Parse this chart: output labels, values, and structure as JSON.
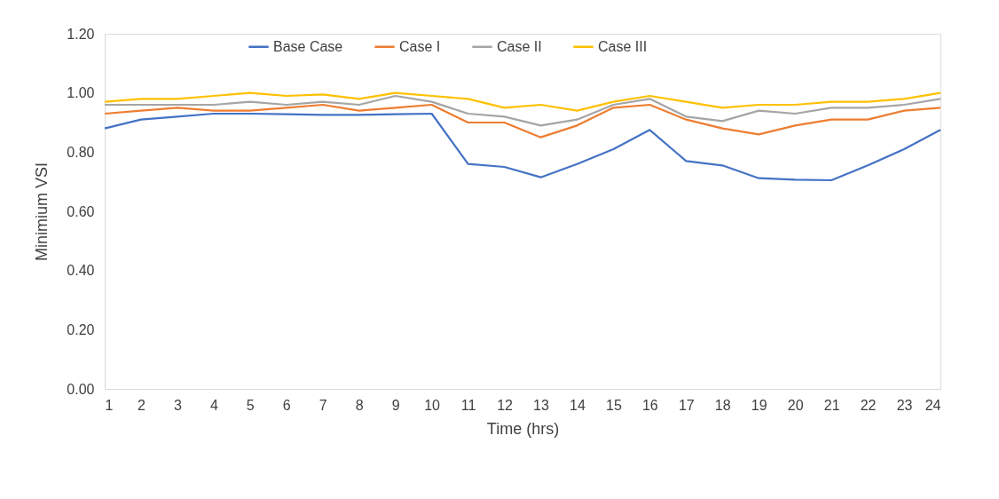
{
  "chart_data": {
    "type": "line",
    "xlabel": "Time (hrs)",
    "ylabel": "Minimium VSI",
    "x": [
      1,
      2,
      3,
      4,
      5,
      6,
      7,
      8,
      9,
      10,
      11,
      12,
      13,
      14,
      15,
      16,
      17,
      18,
      19,
      20,
      21,
      22,
      23,
      24
    ],
    "xlim": [
      1,
      24
    ],
    "xticks": [
      1,
      2,
      3,
      4,
      5,
      6,
      7,
      8,
      9,
      10,
      11,
      12,
      13,
      14,
      15,
      16,
      17,
      18,
      19,
      20,
      21,
      22,
      23,
      24
    ],
    "ylim": [
      0,
      1.2
    ],
    "yticks": [
      {
        "value": 0,
        "label": "0.00"
      },
      {
        "value": 0.2,
        "label": "0.20"
      },
      {
        "value": 0.4,
        "label": "0.40"
      },
      {
        "value": 0.6,
        "label": "0.60"
      },
      {
        "value": 0.8,
        "label": "0.80"
      },
      {
        "value": 1.0,
        "label": "1.00"
      },
      {
        "value": 1.2,
        "label": "1.20"
      }
    ],
    "grid": false,
    "legend": "top",
    "marker": "none",
    "line_style": "solid",
    "series": [
      {
        "name": "Base Case",
        "color": "#4472c4",
        "values": [
          0.88,
          0.91,
          0.92,
          0.93,
          0.93,
          0.928,
          0.926,
          0.926,
          0.928,
          0.93,
          0.76,
          0.75,
          0.715,
          0.76,
          0.81,
          0.875,
          0.77,
          0.755,
          0.712,
          0.707,
          0.705,
          0.755,
          0.81,
          0.875
        ]
      },
      {
        "name": "Case I",
        "color": "#ed7d31",
        "values": [
          0.93,
          0.94,
          0.95,
          0.94,
          0.94,
          0.95,
          0.96,
          0.94,
          0.95,
          0.96,
          0.9,
          0.9,
          0.85,
          0.89,
          0.95,
          0.96,
          0.91,
          0.88,
          0.86,
          0.89,
          0.91,
          0.91,
          0.94,
          0.95
        ]
      },
      {
        "name": "Case II",
        "color": "#a5a5a5",
        "values": [
          0.96,
          0.96,
          0.96,
          0.96,
          0.97,
          0.96,
          0.97,
          0.96,
          0.99,
          0.97,
          0.93,
          0.92,
          0.89,
          0.91,
          0.96,
          0.98,
          0.92,
          0.905,
          0.94,
          0.93,
          0.95,
          0.95,
          0.96,
          0.98
        ]
      },
      {
        "name": "Case III",
        "color": "#ffc000",
        "values": [
          0.97,
          0.98,
          0.98,
          0.99,
          1.0,
          0.99,
          0.995,
          0.98,
          1.0,
          0.99,
          0.98,
          0.95,
          0.96,
          0.94,
          0.97,
          0.99,
          0.97,
          0.95,
          0.96,
          0.96,
          0.97,
          0.97,
          0.98,
          1.0
        ]
      }
    ]
  }
}
